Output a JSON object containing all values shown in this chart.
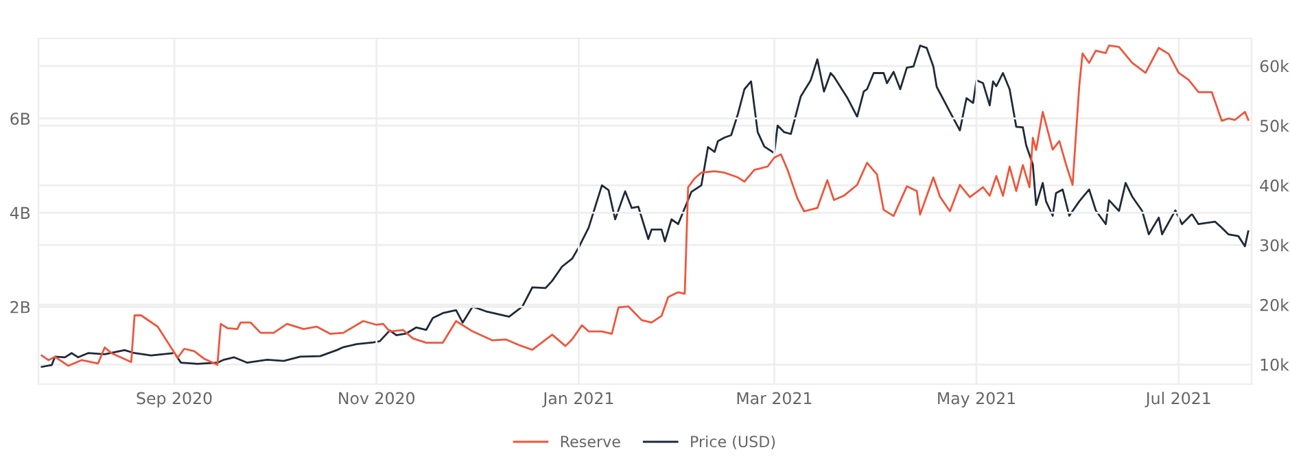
{
  "chart_data": {
    "type": "line",
    "xlim": [
      "2020-07-22",
      "2021-07-23"
    ],
    "xticks": [
      {
        "value": "2020-09-01",
        "label": "Sep 2020"
      },
      {
        "value": "2020-11-01",
        "label": "Nov 2020"
      },
      {
        "value": "2021-01-01",
        "label": "Jan 2021"
      },
      {
        "value": "2021-03-01",
        "label": "Mar 2021"
      },
      {
        "value": "2021-05-01",
        "label": "May 2021"
      },
      {
        "value": "2021-07-01",
        "label": "Jul 2021"
      }
    ],
    "ylim": [
      360000000,
      7700000000
    ],
    "yticks": [
      {
        "value": 2000000000,
        "label": "2B"
      },
      {
        "value": 4000000000,
        "label": "4B"
      },
      {
        "value": 6000000000,
        "label": "6B"
      }
    ],
    "y2lim": [
      6700,
      64600
    ],
    "y2ticks": [
      {
        "value": 10000,
        "label": "10k"
      },
      {
        "value": 20000,
        "label": "20k"
      },
      {
        "value": 30000,
        "label": "30k"
      },
      {
        "value": 40000,
        "label": "40k"
      },
      {
        "value": 50000,
        "label": "50k"
      },
      {
        "value": 60000,
        "label": "60k"
      }
    ],
    "grid": true,
    "legend": "bottom",
    "series": [
      {
        "name": "Reserve",
        "color": "#ef553b",
        "x": [
          "2020-07-23",
          "2020-07-25",
          "2020-07-27",
          "2020-07-31",
          "2020-08-04",
          "2020-08-09",
          "2020-08-11",
          "2020-08-13",
          "2020-08-19",
          "2020-08-20",
          "2020-08-22",
          "2020-08-27",
          "2020-08-31",
          "2020-09-02",
          "2020-09-04",
          "2020-09-07",
          "2020-09-10",
          "2020-09-14",
          "2020-09-15",
          "2020-09-17",
          "2020-09-20",
          "2020-09-21",
          "2020-09-24",
          "2020-09-27",
          "2020-10-01",
          "2020-10-05",
          "2020-10-10",
          "2020-10-14",
          "2020-10-18",
          "2020-10-22",
          "2020-10-28",
          "2020-11-01",
          "2020-11-03",
          "2020-11-05",
          "2020-11-09",
          "2020-11-12",
          "2020-11-16",
          "2020-11-21",
          "2020-11-25",
          "2020-11-30",
          "2020-12-06",
          "2020-12-10",
          "2020-12-14",
          "2020-12-18",
          "2020-12-24",
          "2020-12-28",
          "2020-12-30",
          "2021-01-02",
          "2021-01-04",
          "2021-01-08",
          "2021-01-11",
          "2021-01-13",
          "2021-01-16",
          "2021-01-20",
          "2021-01-23",
          "2021-01-26",
          "2021-01-28",
          "2021-01-31",
          "2021-02-02",
          "2021-02-03",
          "2021-02-05",
          "2021-02-07",
          "2021-02-11",
          "2021-02-14",
          "2021-02-18",
          "2021-02-20",
          "2021-02-23",
          "2021-02-27",
          "2021-03-01",
          "2021-03-03",
          "2021-03-05",
          "2021-03-08",
          "2021-03-10",
          "2021-03-14",
          "2021-03-17",
          "2021-03-19",
          "2021-03-22",
          "2021-03-26",
          "2021-03-29",
          "2021-04-01",
          "2021-04-03",
          "2021-04-06",
          "2021-04-10",
          "2021-04-13",
          "2021-04-14",
          "2021-04-18",
          "2021-04-20",
          "2021-04-23",
          "2021-04-26",
          "2021-04-29",
          "2021-05-03",
          "2021-05-05",
          "2021-05-07",
          "2021-05-09",
          "2021-05-11",
          "2021-05-13",
          "2021-05-15",
          "2021-05-17",
          "2021-05-18",
          "2021-05-19",
          "2021-05-21",
          "2021-05-24",
          "2021-05-26",
          "2021-05-28",
          "2021-05-30",
          "2021-06-01",
          "2021-06-02",
          "2021-06-04",
          "2021-06-06",
          "2021-06-09",
          "2021-06-10",
          "2021-06-13",
          "2021-06-17",
          "2021-06-21",
          "2021-06-25",
          "2021-06-28",
          "2021-07-01",
          "2021-07-04",
          "2021-07-07",
          "2021-07-11",
          "2021-07-14",
          "2021-07-16",
          "2021-07-18",
          "2021-07-21",
          "2021-07-22"
        ],
        "values": [
          970000000,
          870000000,
          940000000,
          750000000,
          870000000,
          800000000,
          1140000000,
          1020000000,
          830000000,
          1820000000,
          1820000000,
          1580000000,
          1140000000,
          920000000,
          1110000000,
          1060000000,
          900000000,
          770000000,
          1640000000,
          1550000000,
          1530000000,
          1670000000,
          1670000000,
          1450000000,
          1450000000,
          1640000000,
          1530000000,
          1580000000,
          1430000000,
          1450000000,
          1700000000,
          1620000000,
          1640000000,
          1480000000,
          1510000000,
          1330000000,
          1240000000,
          1240000000,
          1700000000,
          1480000000,
          1290000000,
          1310000000,
          1190000000,
          1090000000,
          1410000000,
          1170000000,
          1310000000,
          1610000000,
          1480000000,
          1480000000,
          1430000000,
          1990000000,
          2010000000,
          1720000000,
          1670000000,
          1810000000,
          2210000000,
          2310000000,
          2280000000,
          4540000000,
          4730000000,
          4850000000,
          4880000000,
          4850000000,
          4750000000,
          4660000000,
          4910000000,
          4980000000,
          5170000000,
          5240000000,
          4910000000,
          4300000000,
          4030000000,
          4100000000,
          4690000000,
          4270000000,
          4360000000,
          4590000000,
          5060000000,
          4810000000,
          4060000000,
          3930000000,
          4560000000,
          4460000000,
          3960000000,
          4750000000,
          4340000000,
          4030000000,
          4590000000,
          4330000000,
          4540000000,
          4360000000,
          4780000000,
          4360000000,
          4980000000,
          4460000000,
          5010000000,
          4540000000,
          5590000000,
          5330000000,
          6140000000,
          5340000000,
          5520000000,
          5030000000,
          4590000000,
          6680000000,
          7380000000,
          7180000000,
          7440000000,
          7390000000,
          7550000000,
          7520000000,
          7180000000,
          6970000000,
          7500000000,
          7370000000,
          6970000000,
          6820000000,
          6560000000,
          6560000000,
          5950000000,
          6000000000,
          5970000000,
          6140000000,
          5970000000
        ]
      },
      {
        "name": "Price (USD)",
        "color": "#1f2a38",
        "axis": "y2",
        "x": [
          "2020-07-23",
          "2020-07-26",
          "2020-07-27",
          "2020-07-30",
          "2020-08-01",
          "2020-08-03",
          "2020-08-06",
          "2020-08-11",
          "2020-08-17",
          "2020-08-20",
          "2020-08-25",
          "2020-09-01",
          "2020-09-03",
          "2020-09-08",
          "2020-09-14",
          "2020-09-16",
          "2020-09-19",
          "2020-09-23",
          "2020-09-29",
          "2020-10-04",
          "2020-10-09",
          "2020-10-15",
          "2020-10-20",
          "2020-10-22",
          "2020-10-26",
          "2020-10-31",
          "2020-11-02",
          "2020-11-05",
          "2020-11-07",
          "2020-11-10",
          "2020-11-13",
          "2020-11-16",
          "2020-11-18",
          "2020-11-21",
          "2020-11-25",
          "2020-11-27",
          "2020-11-30",
          "2020-12-04",
          "2020-12-11",
          "2020-12-15",
          "2020-12-18",
          "2020-12-22",
          "2020-12-24",
          "2020-12-27",
          "2020-12-30",
          "2021-01-01",
          "2021-01-04",
          "2021-01-08",
          "2021-01-10",
          "2021-01-12",
          "2021-01-15",
          "2021-01-17",
          "2021-01-19",
          "2021-01-22",
          "2021-01-23",
          "2021-01-26",
          "2021-01-27",
          "2021-01-29",
          "2021-01-31",
          "2021-02-02",
          "2021-02-04",
          "2021-02-07",
          "2021-02-09",
          "2021-02-11",
          "2021-02-12",
          "2021-02-14",
          "2021-02-16",
          "2021-02-18",
          "2021-02-20",
          "2021-02-22",
          "2021-02-24",
          "2021-02-26",
          "2021-03-01",
          "2021-03-02",
          "2021-03-04",
          "2021-03-06",
          "2021-03-09",
          "2021-03-12",
          "2021-03-14",
          "2021-03-16",
          "2021-03-18",
          "2021-03-19",
          "2021-03-23",
          "2021-03-26",
          "2021-03-28",
          "2021-03-29",
          "2021-03-31",
          "2021-04-03",
          "2021-04-04",
          "2021-04-06",
          "2021-04-08",
          "2021-04-10",
          "2021-04-12",
          "2021-04-14",
          "2021-04-16",
          "2021-04-18",
          "2021-04-19",
          "2021-04-23",
          "2021-04-26",
          "2021-04-28",
          "2021-04-30",
          "2021-05-01",
          "2021-05-03",
          "2021-05-05",
          "2021-05-06",
          "2021-05-07",
          "2021-05-09",
          "2021-05-11",
          "2021-05-13",
          "2021-05-15",
          "2021-05-16",
          "2021-05-18",
          "2021-05-19",
          "2021-05-21",
          "2021-05-22",
          "2021-05-24",
          "2021-05-25",
          "2021-05-27",
          "2021-05-29",
          "2021-06-01",
          "2021-06-04",
          "2021-06-06",
          "2021-06-09",
          "2021-06-10",
          "2021-06-13",
          "2021-06-15",
          "2021-06-17",
          "2021-06-20",
          "2021-06-22",
          "2021-06-25",
          "2021-06-26",
          "2021-06-30",
          "2021-07-02",
          "2021-07-05",
          "2021-07-07",
          "2021-07-12",
          "2021-07-14",
          "2021-07-16",
          "2021-07-19",
          "2021-07-21",
          "2021-07-22"
        ],
        "values": [
          9600,
          9900,
          11300,
          11200,
          11900,
          11200,
          11900,
          11700,
          12400,
          11900,
          11500,
          11900,
          10300,
          10100,
          10300,
          10800,
          11200,
          10300,
          10800,
          10600,
          11300,
          11400,
          12400,
          12900,
          13400,
          13700,
          13900,
          15700,
          14900,
          15200,
          16200,
          15800,
          17800,
          18600,
          19100,
          17000,
          19700,
          18900,
          18000,
          19700,
          22900,
          22800,
          24000,
          26400,
          27700,
          29600,
          32900,
          40000,
          39200,
          34300,
          39000,
          36200,
          36400,
          31000,
          32600,
          32600,
          30600,
          34300,
          33500,
          36200,
          38900,
          40000,
          46400,
          45600,
          47400,
          48000,
          48400,
          51900,
          56100,
          57400,
          48900,
          46500,
          45400,
          50000,
          48900,
          48600,
          54900,
          57600,
          61100,
          55700,
          58800,
          58200,
          54700,
          51500,
          55700,
          56100,
          58800,
          58800,
          57100,
          59000,
          56100,
          59700,
          59900,
          63400,
          63000,
          59900,
          56500,
          52300,
          49200,
          54600,
          53800,
          57600,
          57100,
          53400,
          57400,
          56600,
          58800,
          56100,
          49800,
          49700,
          46700,
          43500,
          36700,
          40400,
          37300,
          34900,
          38700,
          39300,
          34900,
          37300,
          39300,
          35800,
          33500,
          37500,
          35700,
          40400,
          38100,
          35700,
          31800,
          34600,
          31800,
          35800,
          33500,
          35200,
          33500,
          33900,
          32900,
          31800,
          31500,
          29800,
          32300
        ]
      }
    ]
  }
}
